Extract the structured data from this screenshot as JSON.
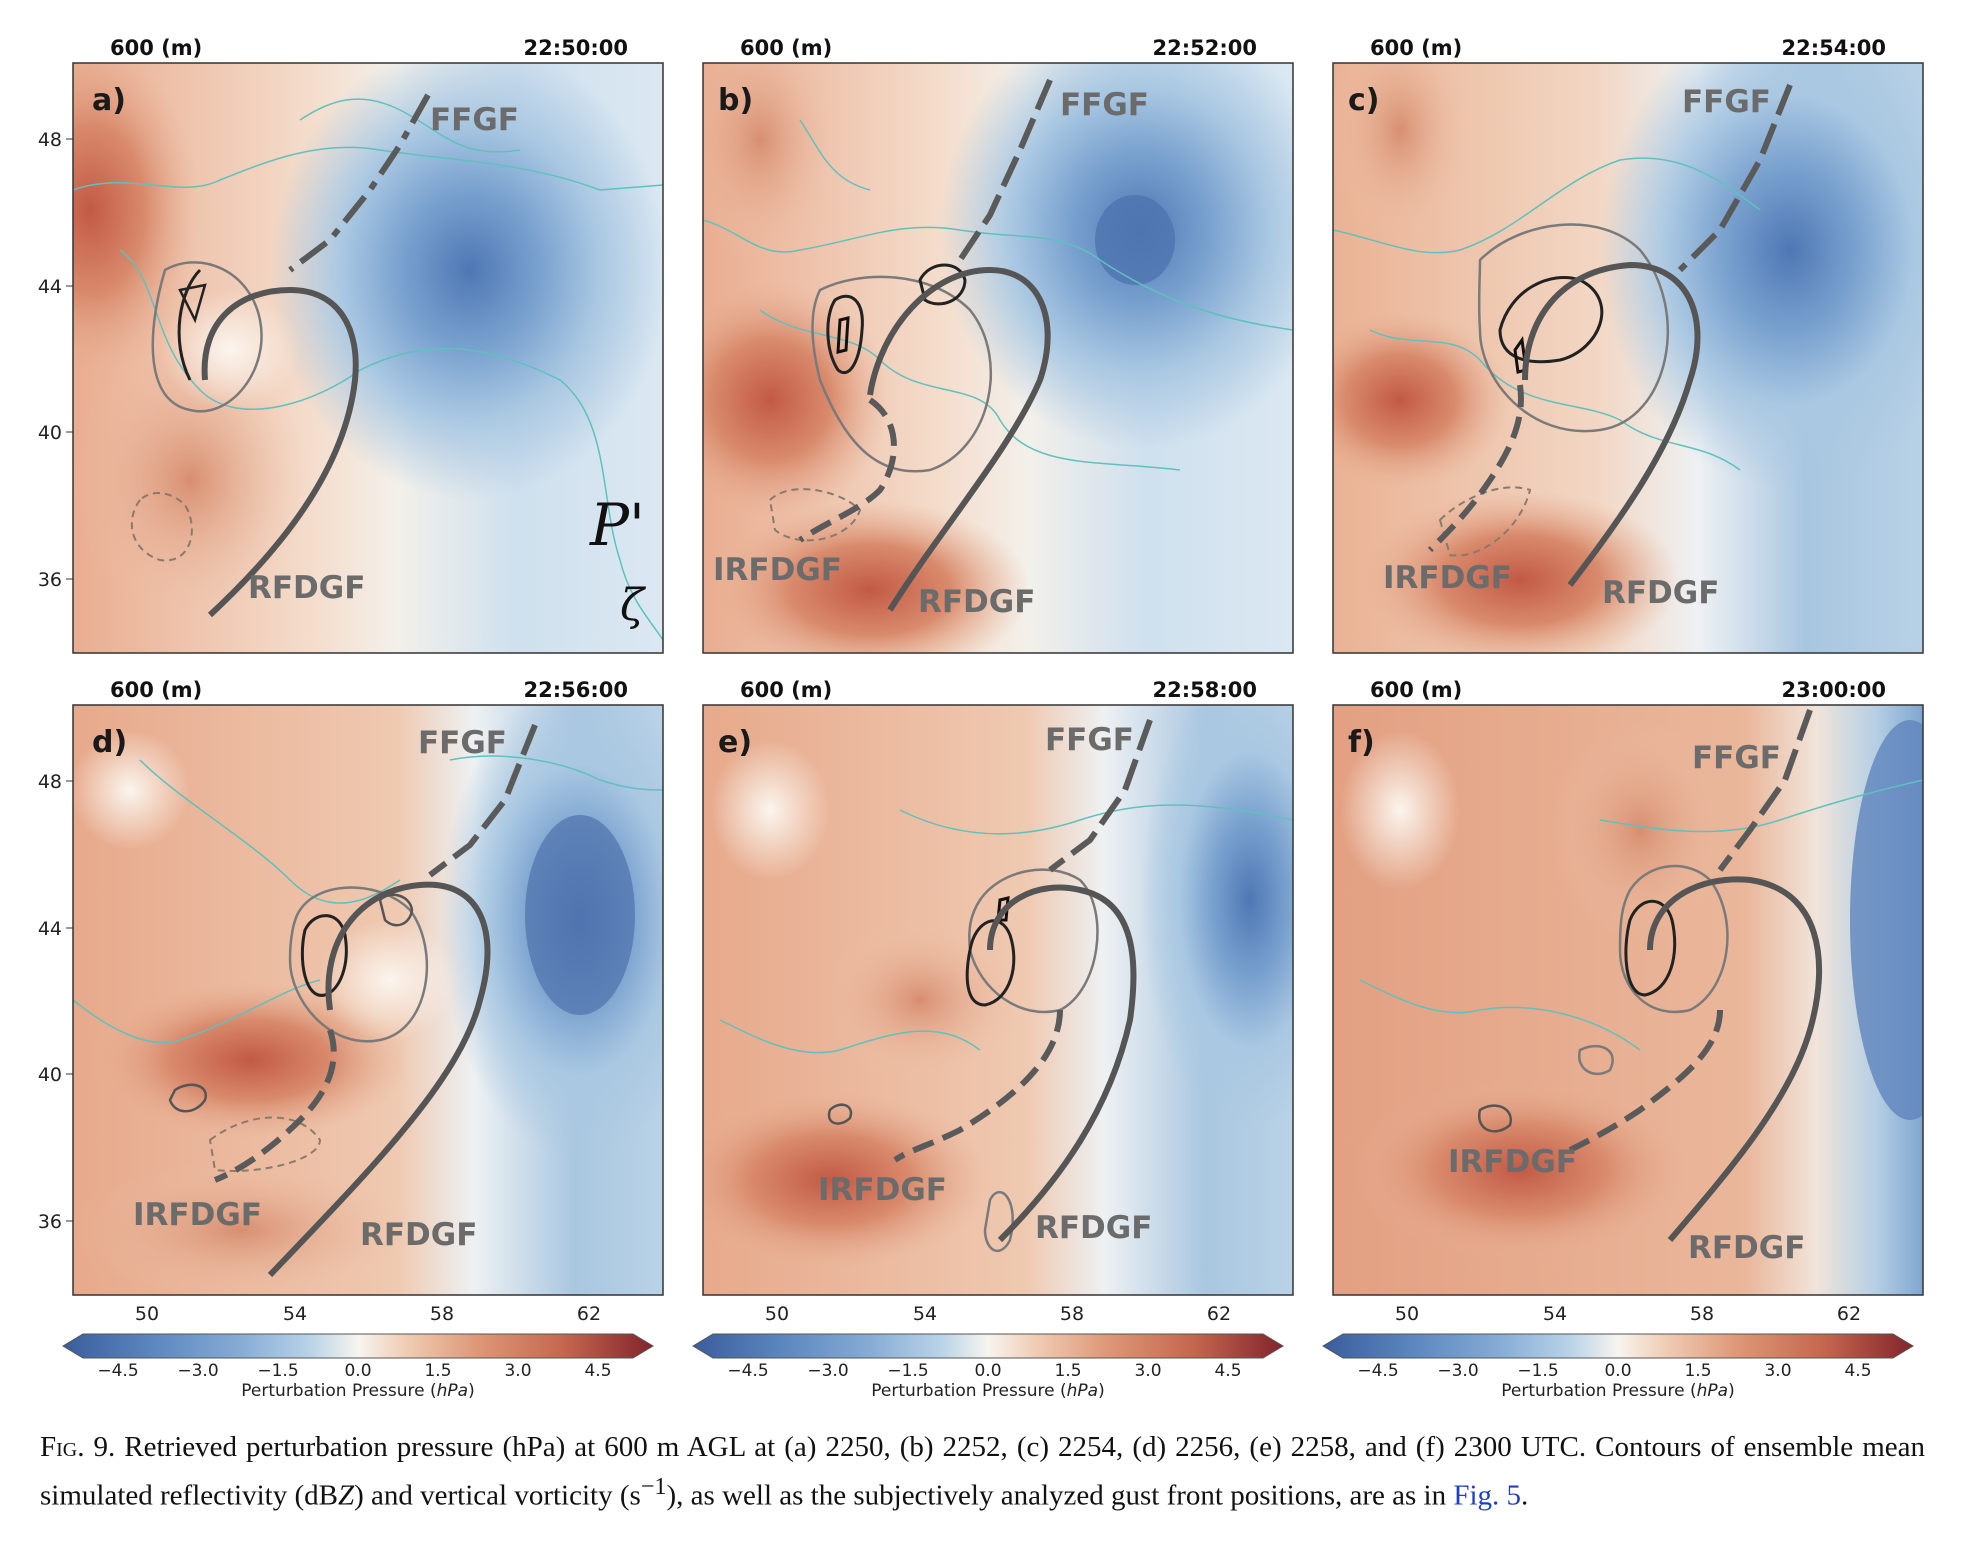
{
  "figure": {
    "panels": [
      {
        "label": "a)",
        "height_label": "600 (m)",
        "time": "22:50:00"
      },
      {
        "label": "b)",
        "height_label": "600 (m)",
        "time": "22:52:00"
      },
      {
        "label": "c)",
        "height_label": "600 (m)",
        "time": "22:54:00"
      },
      {
        "label": "d)",
        "height_label": "600 (m)",
        "time": "22:56:00"
      },
      {
        "label": "e)",
        "height_label": "600 (m)",
        "time": "22:58:00"
      },
      {
        "label": "f)",
        "height_label": "600 (m)",
        "time": "23:00:00"
      }
    ],
    "y_ticks": [
      "48",
      "44",
      "40",
      "36"
    ],
    "x_ticks": [
      "50",
      "54",
      "58",
      "62"
    ],
    "gust_front_labels": {
      "ffgf": "FFGF",
      "rfdgf": "RFDGF",
      "irfdgf": "IRFDGF"
    },
    "legend_symbols": {
      "pressure": "P'",
      "vorticity": "ζ"
    },
    "colorbar": {
      "ticks": [
        "−4.5",
        "−3.0",
        "−1.5",
        "0.0",
        "1.5",
        "3.0",
        "4.5"
      ],
      "title_main": "Perturbation Pressure (",
      "title_unit": "hPa",
      "title_close": ")",
      "colors": [
        "#3a5d9c",
        "#4a72b0",
        "#5b86bf",
        "#6f99ca",
        "#86acd5",
        "#9fc0df",
        "#b9d3e8",
        "#d2e3f0",
        "#e8f1f6",
        "#f7f4ef",
        "#f6e4d6",
        "#f0cdb5",
        "#e8b395",
        "#de9878",
        "#d17f62",
        "#c4664e",
        "#b24f41",
        "#9c3936",
        "#82242c"
      ]
    },
    "caption": {
      "label": "Fig. 9.",
      "line1": " Retrieved perturbation pressure (hPa) at 600 m AGL at (a) 2250, (b) 2252, (c) 2254, (d) 2256, (e) 2258, and (f) 2300 UTC.",
      "line2_pre": "Contours of ensemble mean simulated reflectivity (dB",
      "line2_z": "Z",
      "line2_mid": ") and vertical vorticity (s",
      "line2_sup": "−1",
      "line2_post": "), as well as the subjectively analyzed gust front",
      "line3_pre": "positions, are as in ",
      "link": "Fig. 5",
      "line3_post": "."
    }
  }
}
